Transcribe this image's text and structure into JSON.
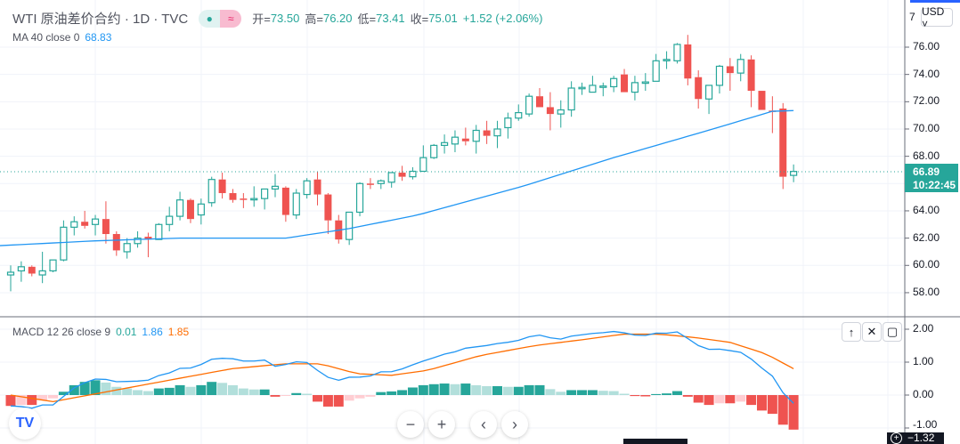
{
  "header": {
    "symbol_title": "WTI 原油差价合约 · 1D · TVC",
    "ohlc": {
      "open_label": "开=",
      "open": "73.50",
      "high_label": "高=",
      "high": "76.20",
      "low_label": "低=",
      "low": "73.41",
      "close_label": "收=",
      "close": "75.01",
      "change": "+1.52 (+2.06%)"
    },
    "pill_icons": [
      "dot-icon",
      "wave-icon"
    ],
    "pill_wave": "≈",
    "pill_dot": "●"
  },
  "ma_legend": {
    "label": "MA 40 close 0",
    "value": "68.83"
  },
  "macd_legend": {
    "label": "MACD 12 26 close 9",
    "hist": "0.01",
    "macd": "1.86",
    "signal": "1.85"
  },
  "currency": "USD ˅",
  "last_price": {
    "price": "66.89",
    "countdown": "10:22:45"
  },
  "price_axis": [
    "76.00",
    "74.00",
    "72.00",
    "70.00",
    "68.00",
    "64.00",
    "62.00",
    "60.00",
    "58.00"
  ],
  "price_axis_top_partial": "7",
  "macd_axis": [
    "2.00",
    "1.00",
    "0.00",
    "-1.00"
  ],
  "macd_axis_current": "−1.32",
  "pane_buttons": {
    "up": "↑",
    "close": "✕",
    "maximize": "▢"
  },
  "nav_buttons": {
    "zoom_out": "−",
    "zoom_in": "+",
    "back": "‹",
    "forward": "›"
  },
  "logo_text": "TV",
  "colors": {
    "up": "#26a69a",
    "down": "#ef5350",
    "ma": "#2196f3",
    "signal": "#ff6d00",
    "hist_up_strong": "#26a69a",
    "hist_up_weak": "#b2dfdb",
    "hist_down_strong": "#ef5350",
    "hist_down_weak": "#ffcdd2"
  },
  "chart_data": [
    {
      "type": "candlestick",
      "title": "WTI 原油差价合约 · 1D · TVC",
      "ylim": [
        57,
        78
      ],
      "y_ticks": [
        58,
        60,
        62,
        64,
        66,
        68,
        70,
        72,
        74,
        76
      ],
      "last_price": 66.89,
      "ohlc": [
        [
          59.3,
          60.0,
          58.1,
          59.5
        ],
        [
          59.6,
          60.3,
          58.8,
          59.9
        ],
        [
          59.9,
          60.0,
          59.2,
          59.4
        ],
        [
          59.3,
          61.0,
          58.7,
          59.6
        ],
        [
          59.6,
          60.4,
          59.5,
          60.4
        ],
        [
          60.4,
          63.3,
          60.3,
          62.8
        ],
        [
          62.8,
          63.6,
          62.2,
          63.2
        ],
        [
          63.2,
          64.0,
          62.7,
          62.9
        ],
        [
          63.0,
          63.7,
          62.2,
          63.4
        ],
        [
          63.4,
          64.7,
          61.6,
          62.3
        ],
        [
          62.3,
          62.5,
          60.7,
          61.1
        ],
        [
          61.0,
          62.0,
          60.5,
          61.6
        ],
        [
          61.6,
          62.5,
          61.3,
          62.0
        ],
        [
          62.1,
          62.4,
          60.6,
          61.9
        ],
        [
          61.9,
          63.1,
          61.9,
          63.0
        ],
        [
          63.0,
          64.3,
          62.5,
          63.6
        ],
        [
          63.6,
          65.4,
          63.3,
          64.8
        ],
        [
          64.8,
          64.9,
          63.1,
          63.4
        ],
        [
          63.7,
          64.9,
          63.0,
          64.5
        ],
        [
          64.6,
          66.5,
          64.3,
          66.3
        ],
        [
          66.3,
          66.8,
          64.9,
          65.3
        ],
        [
          65.3,
          65.6,
          64.6,
          64.8
        ],
        [
          64.9,
          65.3,
          64.2,
          64.85
        ],
        [
          64.85,
          65.8,
          64.3,
          64.9
        ],
        [
          64.9,
          65.6,
          64.1,
          65.6
        ],
        [
          65.6,
          66.7,
          65.0,
          65.8
        ],
        [
          65.7,
          65.8,
          63.2,
          63.7
        ],
        [
          63.7,
          65.6,
          63.4,
          65.3
        ],
        [
          65.2,
          66.4,
          64.9,
          66.2
        ],
        [
          66.3,
          66.9,
          64.4,
          65.2
        ],
        [
          65.2,
          65.3,
          62.3,
          63.3
        ],
        [
          63.3,
          63.7,
          61.6,
          61.9
        ],
        [
          61.9,
          63.9,
          61.5,
          63.9
        ],
        [
          63.9,
          66.1,
          63.6,
          66.0
        ],
        [
          66.0,
          66.4,
          65.6,
          65.95
        ],
        [
          66.0,
          66.3,
          65.6,
          66.2
        ],
        [
          66.1,
          66.8,
          65.7,
          66.8
        ],
        [
          66.8,
          67.3,
          66.2,
          66.5
        ],
        [
          66.5,
          67.2,
          66.3,
          66.9
        ],
        [
          66.9,
          68.8,
          66.9,
          67.9
        ],
        [
          67.9,
          68.9,
          67.8,
          68.8
        ],
        [
          68.8,
          69.6,
          68.2,
          69.0
        ],
        [
          68.9,
          69.9,
          68.3,
          69.4
        ],
        [
          69.3,
          70.1,
          68.8,
          69.1
        ],
        [
          69.1,
          70.3,
          68.2,
          69.9
        ],
        [
          69.9,
          70.6,
          68.9,
          69.5
        ],
        [
          69.5,
          70.6,
          68.6,
          70.0
        ],
        [
          70.1,
          71.2,
          69.3,
          70.8
        ],
        [
          70.8,
          71.8,
          70.6,
          71.2
        ],
        [
          71.1,
          72.6,
          70.9,
          72.4
        ],
        [
          72.4,
          73.0,
          71.6,
          71.6
        ],
        [
          71.6,
          72.7,
          69.9,
          71.1
        ],
        [
          71.1,
          72.1,
          70.1,
          71.4
        ],
        [
          71.4,
          73.5,
          70.9,
          73.0
        ],
        [
          72.95,
          73.4,
          72.5,
          73.05
        ],
        [
          72.7,
          73.9,
          72.7,
          73.2
        ],
        [
          73.05,
          73.4,
          72.4,
          73.15
        ],
        [
          73.1,
          73.9,
          72.7,
          73.7
        ],
        [
          74.0,
          74.4,
          72.7,
          72.7
        ],
        [
          72.7,
          73.9,
          72.1,
          73.4
        ],
        [
          73.35,
          74.1,
          72.8,
          73.45
        ],
        [
          73.5,
          75.5,
          73.5,
          75.0
        ],
        [
          75.0,
          75.7,
          74.4,
          75.1
        ],
        [
          75.0,
          76.3,
          74.8,
          76.2
        ],
        [
          76.2,
          76.9,
          73.2,
          73.7
        ],
        [
          73.8,
          74.3,
          71.5,
          72.2
        ],
        [
          72.2,
          73.2,
          71.1,
          73.2
        ],
        [
          73.2,
          74.7,
          72.6,
          74.6
        ],
        [
          74.6,
          75.2,
          72.8,
          74.1
        ],
        [
          74.1,
          75.5,
          73.5,
          75.1
        ],
        [
          75.1,
          75.4,
          71.6,
          72.8
        ],
        [
          72.8,
          72.8,
          71.4,
          71.4
        ],
        [
          71.35,
          72.4,
          69.7,
          71.25
        ],
        [
          71.5,
          71.9,
          65.6,
          66.5
        ],
        [
          66.6,
          67.4,
          66.1,
          66.89
        ]
      ],
      "ma40": {
        "name": "MA 40 close 0",
        "points_bar_index_value": [
          [
            -1,
            61.45
          ],
          [
            8,
            61.8
          ],
          [
            16,
            62.0
          ],
          [
            26,
            62.0
          ],
          [
            32,
            62.7
          ],
          [
            38.5,
            63.7
          ],
          [
            48.4,
            65.8
          ],
          [
            57,
            67.9
          ],
          [
            65.5,
            69.8
          ],
          [
            72,
            71.3
          ],
          [
            74,
            71.35
          ]
        ]
      }
    },
    {
      "type": "bar+line",
      "title": "MACD 12 26 close 9",
      "ylim": [
        -1.35,
        2.3
      ],
      "y_ticks": [
        2,
        1,
        0,
        -1
      ],
      "histogram": [
        -0.33,
        -0.3,
        -0.3,
        -0.15,
        -0.1,
        0.1,
        0.3,
        0.4,
        0.45,
        0.38,
        0.25,
        0.2,
        0.15,
        0.12,
        0.2,
        0.22,
        0.3,
        0.25,
        0.3,
        0.4,
        0.37,
        0.3,
        0.2,
        0.17,
        0.17,
        -0.05,
        -0.02,
        0.06,
        0.04,
        -0.2,
        -0.35,
        -0.35,
        -0.17,
        -0.1,
        -0.05,
        0.09,
        0.11,
        0.15,
        0.23,
        0.3,
        0.33,
        0.35,
        0.33,
        0.35,
        0.3,
        0.27,
        0.27,
        0.25,
        0.25,
        0.3,
        0.3,
        0.18,
        0.1,
        0.15,
        0.15,
        0.15,
        0.13,
        0.12,
        0.04,
        -0.03,
        -0.04,
        0.03,
        0.05,
        0.12,
        -0.05,
        -0.23,
        -0.3,
        -0.25,
        -0.25,
        -0.2,
        -0.3,
        -0.47,
        -0.57,
        -0.9,
        -1.05
      ],
      "signal_points_bar_index_value": [
        [
          -1,
          0.05
        ],
        [
          4,
          -0.2
        ],
        [
          7.4,
          0.0
        ],
        [
          11.6,
          0.25
        ],
        [
          15.8,
          0.5
        ],
        [
          20.9,
          0.8
        ],
        [
          25.9,
          0.95
        ],
        [
          29.3,
          0.95
        ],
        [
          32.7,
          0.65
        ],
        [
          36,
          0.6
        ],
        [
          39.4,
          0.75
        ],
        [
          44.4,
          1.2
        ],
        [
          49.5,
          1.5
        ],
        [
          54.5,
          1.7
        ],
        [
          57.9,
          1.85
        ],
        [
          61.3,
          1.85
        ],
        [
          64.6,
          1.75
        ],
        [
          68,
          1.6
        ],
        [
          71.4,
          1.25
        ],
        [
          74,
          0.8
        ]
      ]
    }
  ]
}
